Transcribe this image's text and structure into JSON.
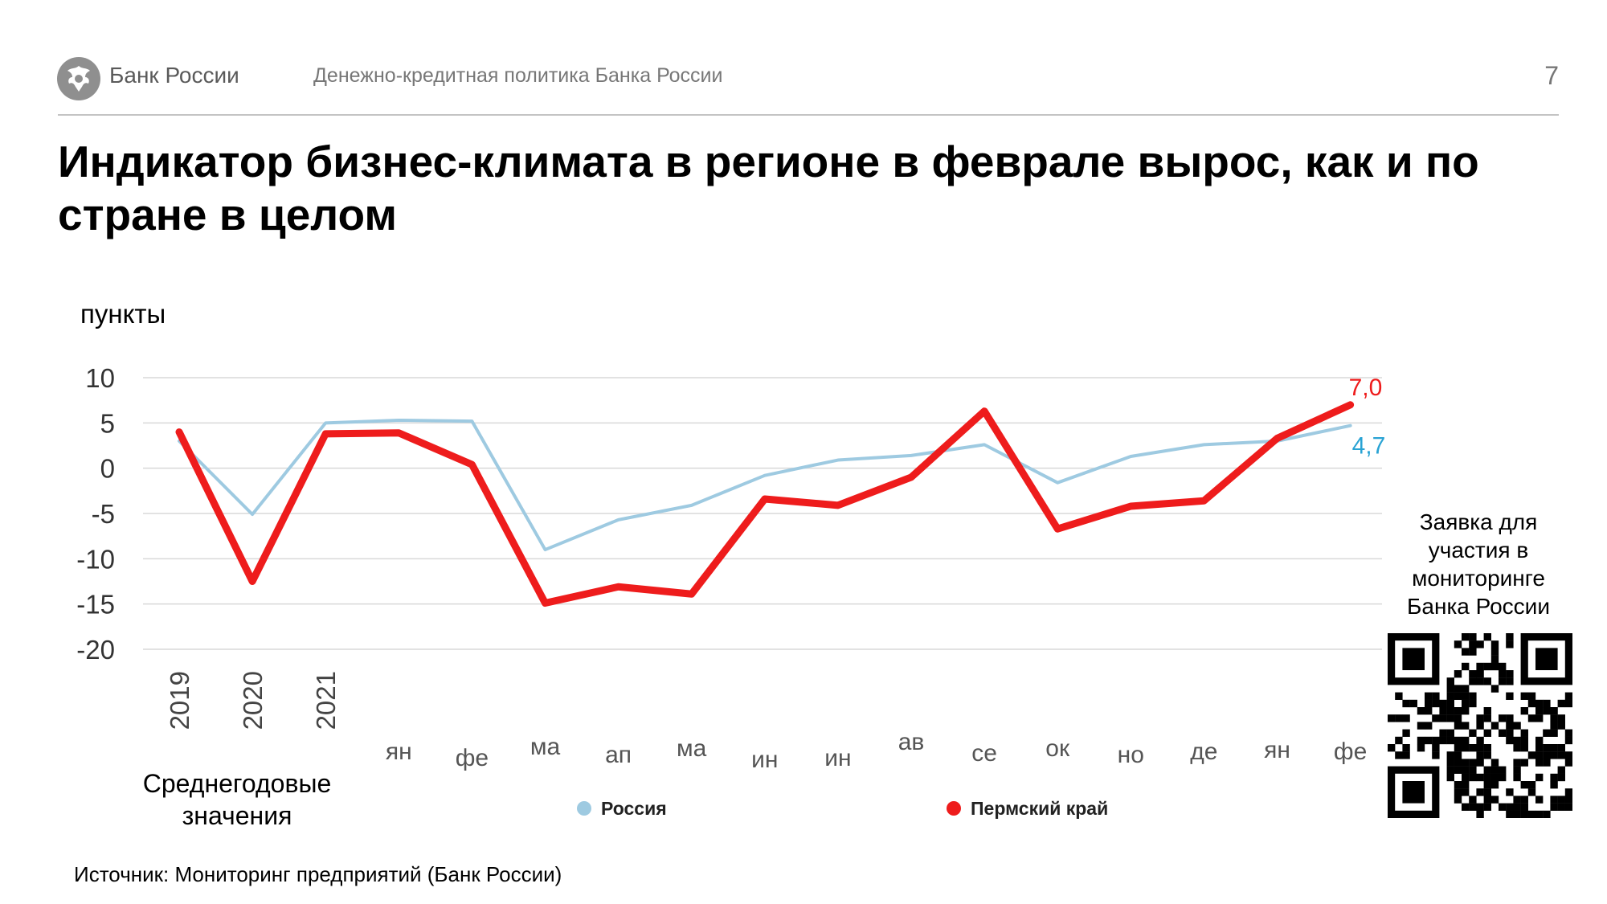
{
  "header": {
    "bank_name": "Банк России",
    "doc_title": "Денежно-кредитная политика Банка России",
    "page_number": "7"
  },
  "slide_title": "Индикатор бизнес-климата в регионе в феврале вырос, как и по стране в целом",
  "avg_caption": "Среднегодовые значения",
  "source": "Источник: Мониторинг предприятий (Банк России)",
  "qr": {
    "caption": "Заявка для участия в мониторинге Банка России"
  },
  "colors": {
    "russia": "#9ecae1",
    "perm": "#ee1c1c",
    "russia_label": "#29a3d4"
  },
  "chart_data": {
    "type": "line",
    "title": "",
    "ylabel": "пункты",
    "ylim": [
      -20,
      10
    ],
    "yticks": [
      "10",
      "5",
      "0",
      "-5",
      "-10",
      "-15",
      "-20"
    ],
    "grid": true,
    "categories": [
      "2019",
      "2020",
      "2021",
      "ян",
      "фе",
      "ма",
      "ап",
      "ма",
      "ин",
      "ин",
      "ав",
      "се",
      "ок",
      "но",
      "де",
      "ян",
      "фе"
    ],
    "series": [
      {
        "name": "Россия",
        "values": [
          3.0,
          -5.1,
          5.0,
          5.3,
          5.2,
          -9.0,
          -5.7,
          -4.1,
          -0.8,
          0.9,
          1.4,
          2.6,
          -1.6,
          1.3,
          2.6,
          3.0,
          4.7
        ]
      },
      {
        "name": "Пермский край",
        "values": [
          4.0,
          -12.5,
          3.8,
          3.9,
          0.4,
          -14.9,
          -13.1,
          -13.9,
          -3.4,
          -4.1,
          -1.0,
          6.3,
          -6.7,
          -4.2,
          -3.6,
          3.3,
          7.0
        ]
      }
    ],
    "end_labels": {
      "russia": "4,7",
      "perm": "7,0"
    },
    "legend": [
      "Россия",
      "Пермский край"
    ],
    "legend_position": "bottom"
  }
}
